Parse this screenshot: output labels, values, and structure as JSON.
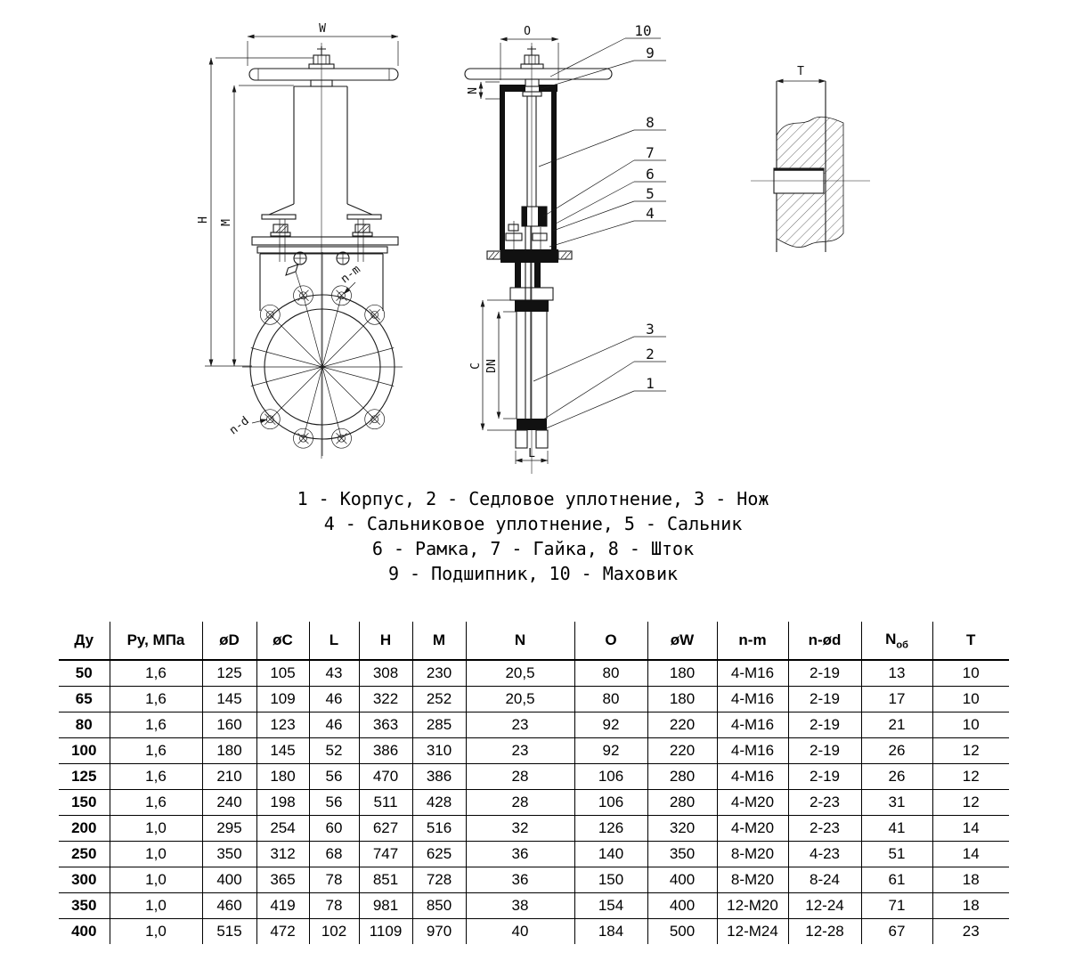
{
  "drawing": {
    "front_view": {
      "dim_w": "W",
      "dim_h": "H",
      "dim_m": "M",
      "flange_label_top": "n-m",
      "flange_label_bottom": "n-d"
    },
    "side_view": {
      "dim_o": "O",
      "dim_n": "N",
      "dim_c": "C",
      "dim_dn": "DN",
      "dim_l": "L"
    },
    "detail_view": {
      "dim_t": "T"
    },
    "callouts": [
      "1",
      "2",
      "3",
      "4",
      "5",
      "6",
      "7",
      "8",
      "9",
      "10"
    ]
  },
  "legend": {
    "lines": [
      "1 - Корпус, 2 - Седловое уплотнение, 3 - Нож",
      "4 - Сальниковое уплотнение, 5 - Сальник",
      "6 - Рамка, 7 - Гайка, 8 - Шток",
      "9 - Подшипник, 10 - Маховик"
    ]
  },
  "table": {
    "headers": [
      "Ду",
      "Ру, МПа",
      "øD",
      "øC",
      "L",
      "H",
      "M",
      "N",
      "O",
      "øW",
      "n-m",
      "n-ød",
      {
        "text": "N",
        "sub": "об"
      },
      "T"
    ],
    "rows": [
      [
        "50",
        "1,6",
        "125",
        "105",
        "43",
        "308",
        "230",
        "20,5",
        "80",
        "180",
        "4-M16",
        "2-19",
        "13",
        "10"
      ],
      [
        "65",
        "1,6",
        "145",
        "109",
        "46",
        "322",
        "252",
        "20,5",
        "80",
        "180",
        "4-M16",
        "2-19",
        "17",
        "10"
      ],
      [
        "80",
        "1,6",
        "160",
        "123",
        "46",
        "363",
        "285",
        "23",
        "92",
        "220",
        "4-M16",
        "2-19",
        "21",
        "10"
      ],
      [
        "100",
        "1,6",
        "180",
        "145",
        "52",
        "386",
        "310",
        "23",
        "92",
        "220",
        "4-M16",
        "2-19",
        "26",
        "12"
      ],
      [
        "125",
        "1,6",
        "210",
        "180",
        "56",
        "470",
        "386",
        "28",
        "106",
        "280",
        "4-M16",
        "2-19",
        "26",
        "12"
      ],
      [
        "150",
        "1,6",
        "240",
        "198",
        "56",
        "511",
        "428",
        "28",
        "106",
        "280",
        "4-M20",
        "2-23",
        "31",
        "12"
      ],
      [
        "200",
        "1,0",
        "295",
        "254",
        "60",
        "627",
        "516",
        "32",
        "126",
        "320",
        "4-M20",
        "2-23",
        "41",
        "14"
      ],
      [
        "250",
        "1,0",
        "350",
        "312",
        "68",
        "747",
        "625",
        "36",
        "140",
        "350",
        "8-M20",
        "4-23",
        "51",
        "14"
      ],
      [
        "300",
        "1,0",
        "400",
        "365",
        "78",
        "851",
        "728",
        "36",
        "150",
        "400",
        "8-M20",
        "8-24",
        "61",
        "18"
      ],
      [
        "350",
        "1,0",
        "460",
        "419",
        "78",
        "981",
        "850",
        "38",
        "154",
        "400",
        "12-M20",
        "12-24",
        "71",
        "18"
      ],
      [
        "400",
        "1,0",
        "515",
        "472",
        "102",
        "1109",
        "970",
        "40",
        "184",
        "500",
        "12-M24",
        "12-28",
        "67",
        "23"
      ]
    ]
  }
}
